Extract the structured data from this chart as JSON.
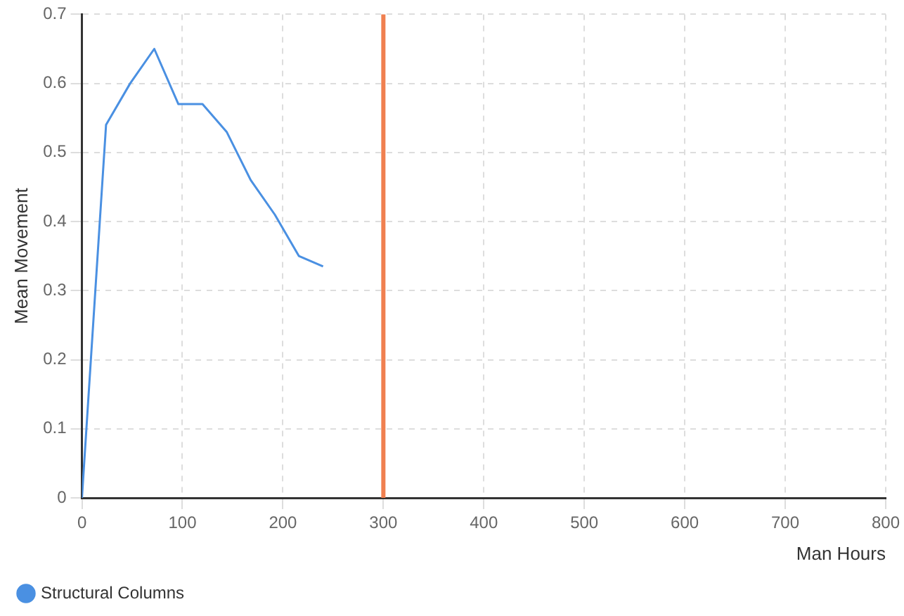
{
  "chart_data": {
    "type": "line",
    "xlabel": "Man Hours",
    "ylabel": "Mean Movement",
    "x": [
      0,
      24,
      48,
      72,
      96,
      120,
      144,
      168,
      192,
      216,
      240
    ],
    "series": [
      {
        "name": "Structural Columns",
        "color": "#4a90e2",
        "values": [
          0,
          0.54,
          0.6,
          0.65,
          0.57,
          0.57,
          0.53,
          0.46,
          0.41,
          0.35,
          0.335
        ]
      }
    ],
    "xlim": [
      0,
      800
    ],
    "xticks": [
      0,
      100,
      200,
      300,
      400,
      500,
      600,
      700,
      800
    ],
    "ylim": [
      0,
      0.7
    ],
    "yticks": [
      0,
      0.1,
      0.2,
      0.3,
      0.4,
      0.5,
      0.6,
      0.7
    ],
    "ref_lines": [
      {
        "axis": "x",
        "value": 300,
        "color": "#f08050"
      }
    ],
    "grid": true,
    "legend": "bottom left",
    "marker": "none",
    "line_style": "solid"
  }
}
